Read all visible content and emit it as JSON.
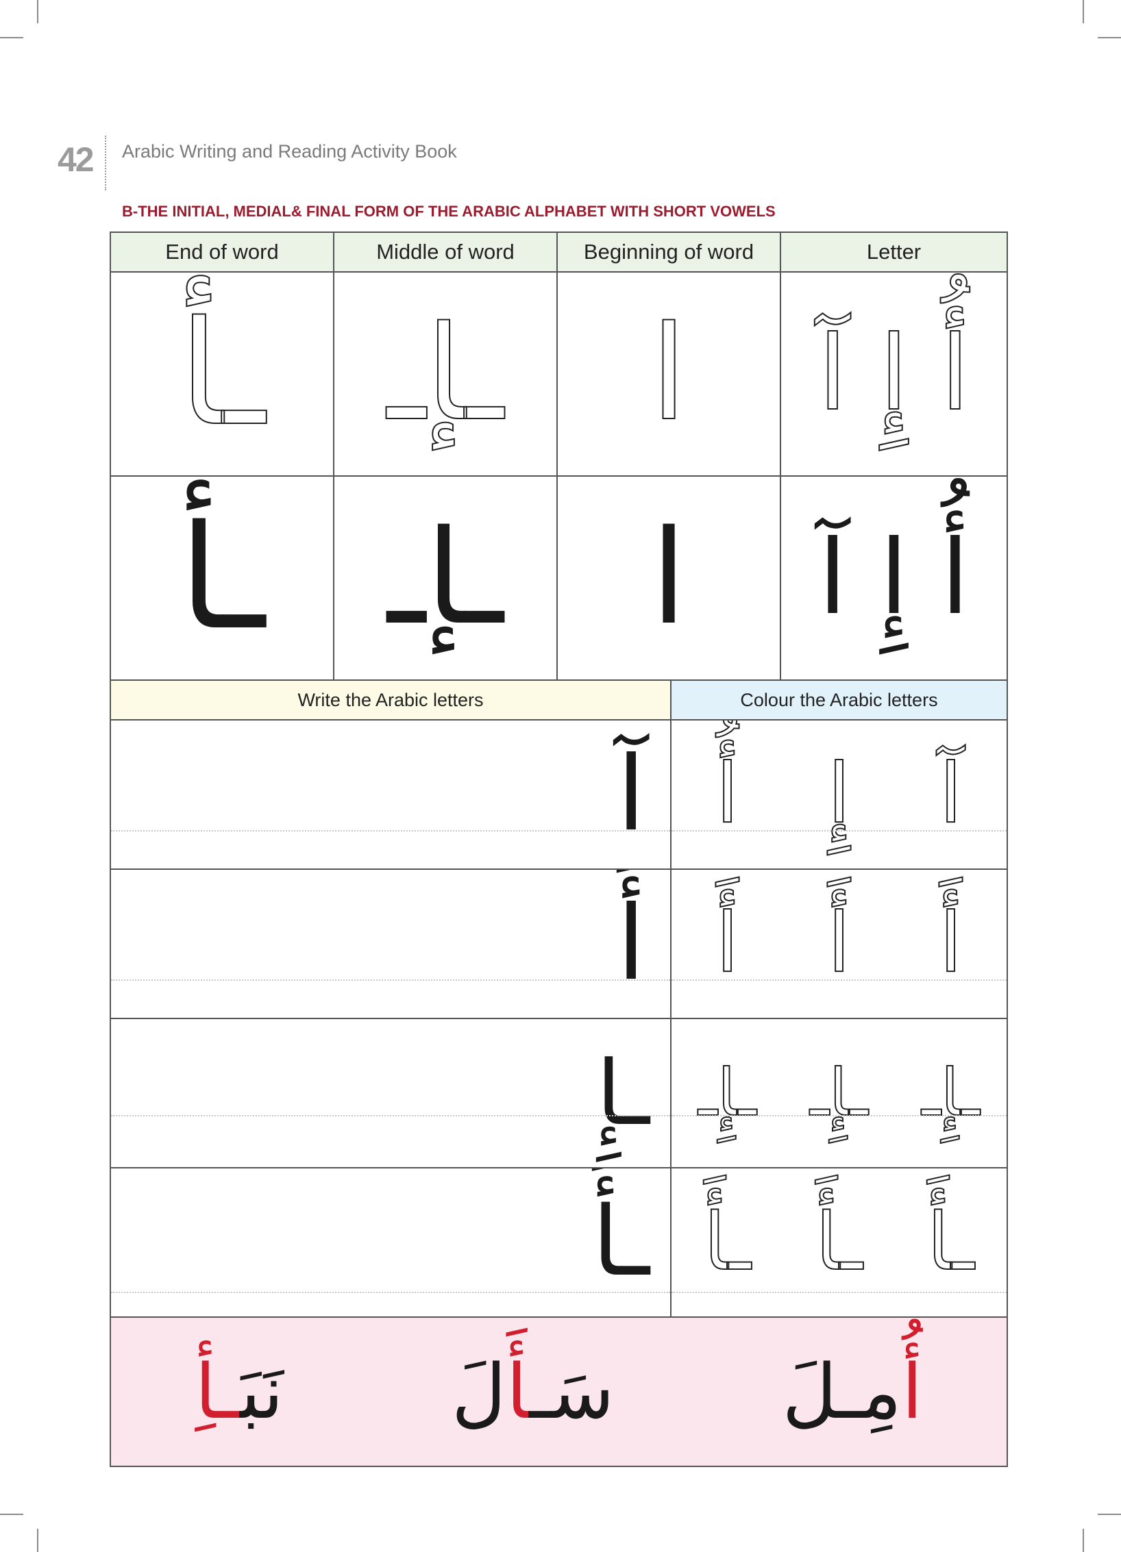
{
  "header": {
    "page_number": "42",
    "book_title": "Arabic Writing and Reading Activity Book",
    "section_title": "B-THE INITIAL, MEDIAL& FINAL FORM OF THE ARABIC ALPHABET WITH SHORT VOWELS"
  },
  "forms_table": {
    "columns": [
      "End of word",
      "Middle of word",
      "Beginning of word",
      "Letter"
    ],
    "rows": [
      {
        "style": "outline",
        "end": "ـأ",
        "middle": "ـإـ",
        "beginning": "ا",
        "letter": "أُ إِ آ"
      },
      {
        "style": "solid",
        "end": "ـأ",
        "middle": "ـإـ",
        "beginning": "ا",
        "letter": "أُ إِ آ"
      }
    ]
  },
  "practice": {
    "write_header": "Write the Arabic letters",
    "colour_header": "Colour the Arabic letters",
    "rows": [
      {
        "model": "آ",
        "colour": [
          "أُ",
          "إِ",
          "آ"
        ]
      },
      {
        "model": "أَ",
        "colour": [
          "أَ",
          "أَ",
          "أَ"
        ]
      },
      {
        "model": "ـإِ",
        "colour": [
          "ـإِـ",
          "ـإِـ",
          "ـإِـ"
        ]
      },
      {
        "model": "ـأَ",
        "colour": [
          "ـأَ",
          "ـأَ",
          "ـأَ"
        ]
      }
    ]
  },
  "words": [
    {
      "pre": "نَبَ",
      "highlight": "ـأِ",
      "post": ""
    },
    {
      "pre": "سَـ",
      "highlight": "أَ",
      "post": "لَ"
    },
    {
      "pre": "",
      "highlight": "أُ",
      "post": "مِـلَ"
    }
  ],
  "colors": {
    "forms_header_bg": "#eaf3e6",
    "write_header_bg": "#fdfbe6",
    "colour_header_bg": "#e2f2fb",
    "words_bg": "#fce6ee",
    "section_title": "#9b1c2e",
    "highlight": "#d11f2f"
  }
}
